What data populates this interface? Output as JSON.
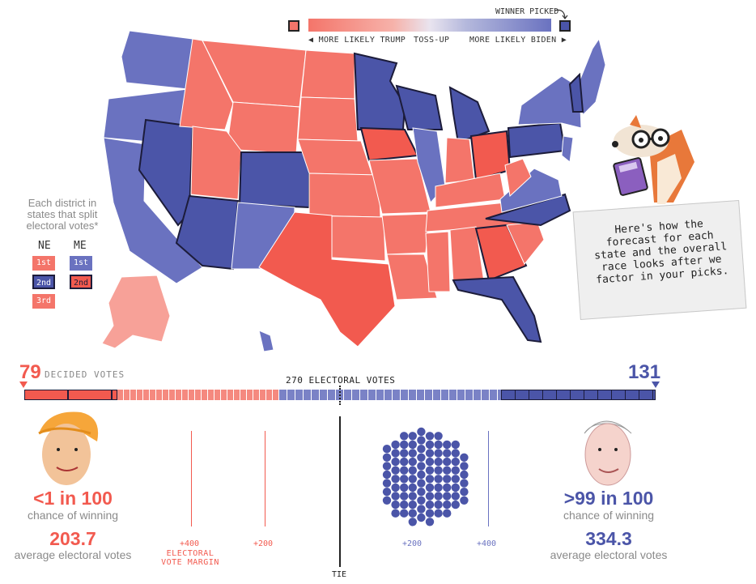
{
  "legend": {
    "winner_picked": "WINNER PICKED",
    "more_likely_trump": "◀ MORE LIKELY TRUMP",
    "toss_up": "TOSS-UP",
    "more_likely_biden": "MORE LIKELY BIDEN ▶",
    "colors": {
      "trump_strong": "#f25a4f",
      "trump": "#f4756a",
      "trump_light": "#f7a198",
      "biden_light": "#7a82c6",
      "biden": "#6a72c0",
      "biden_strong": "#4b55a8",
      "outline": "#1c1c3a"
    }
  },
  "district_key": {
    "title": "Each district in states that split electoral votes*",
    "ne_label": "NE",
    "me_label": "ME",
    "ne": [
      "1st",
      "2nd",
      "3rd"
    ],
    "me": [
      "1st",
      "2nd"
    ]
  },
  "callout": {
    "text": "Here's how the forecast for each state and the overall race looks after we factor in your picks."
  },
  "mascot": {
    "icon": "fox-with-glasses-calculator-icon"
  },
  "electoral": {
    "trump_decided": "79",
    "decided_votes_label": "DECIDED VOTES",
    "threshold_label": "270 ELECTORAL VOTES",
    "biden_decided": "131"
  },
  "trump": {
    "avatar": "trump-caricature-icon",
    "chance": "<1 in 100",
    "chance_label": "chance of winning",
    "avg_ev": "203.7",
    "avg_ev_label": "average electoral votes"
  },
  "biden": {
    "avatar": "biden-caricature-icon",
    "chance": ">99 in 100",
    "chance_label": "chance of winning",
    "avg_ev": "334.3",
    "avg_ev_label": "average electoral votes"
  },
  "histogram": {
    "left_400": "+400",
    "margin_label": "ELECTORAL VOTE MARGIN",
    "left_200": "+200",
    "tie": "TIE",
    "right_200": "+200",
    "right_400": "+400"
  }
}
